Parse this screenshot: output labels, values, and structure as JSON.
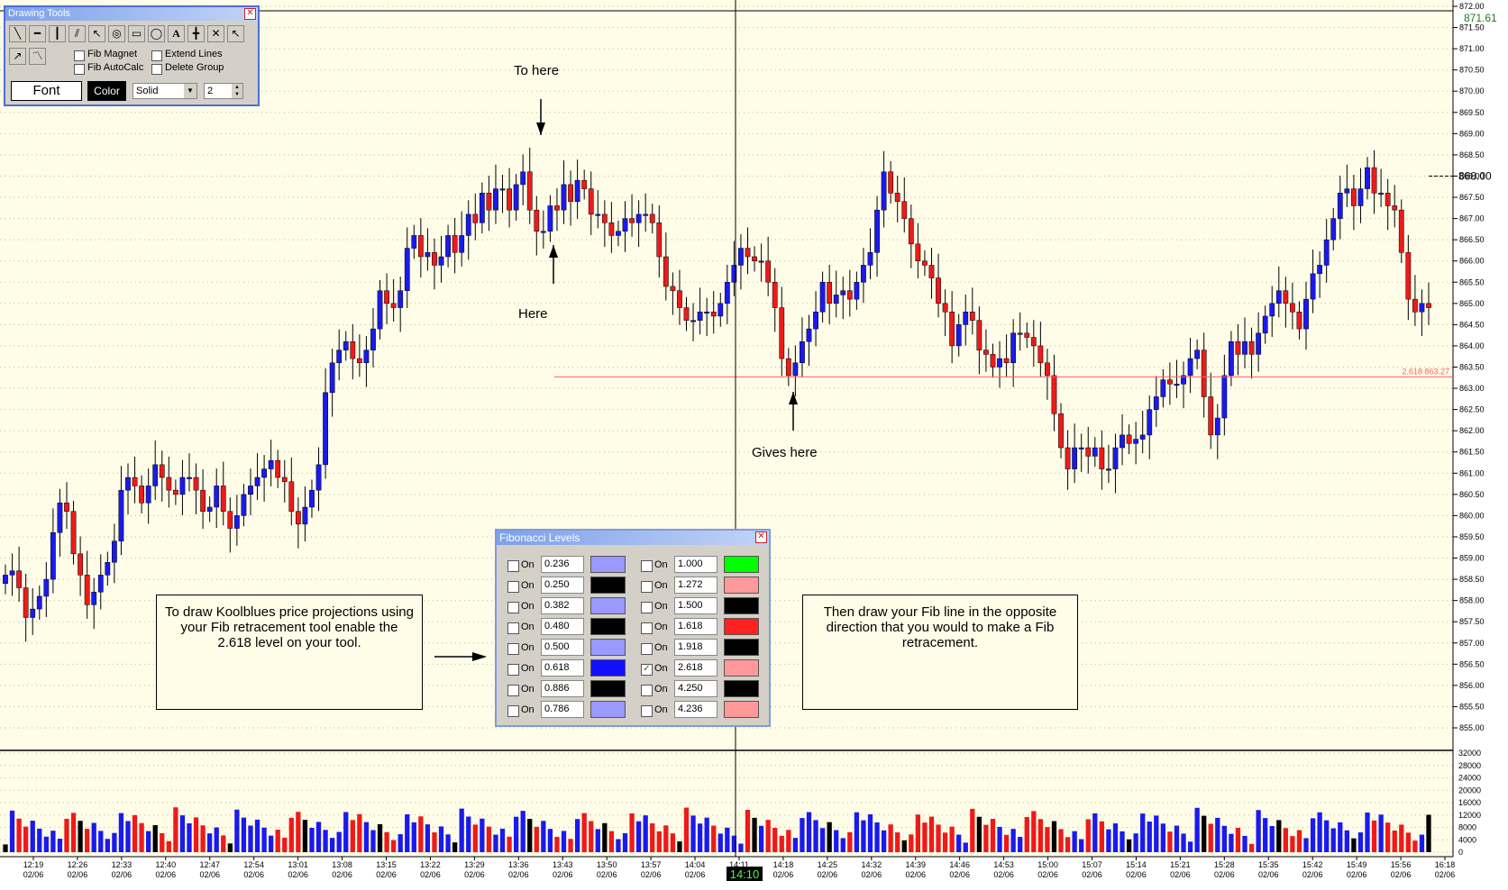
{
  "toolbar": {
    "title": "Drawing Tools",
    "fib_magnet": "Fib Magnet",
    "fib_autocalc": "Fib AutoCalc",
    "extend_lines": "Extend Lines",
    "delete_group": "Delete Group",
    "font_label": "Font",
    "color_label": "Color",
    "line_style": "Solid",
    "line_width": "2",
    "tools": [
      "line-tool",
      "horizontal-line-tool",
      "vertical-line-tool",
      "parallel-lines-tool",
      "arrow-tool",
      "fib-spiral-tool",
      "rectangle-tool",
      "ellipse-tool",
      "text-tool",
      "cross-line-tool",
      "delete-tool",
      "pointer-tool"
    ]
  },
  "annotations": {
    "to_here": "To here",
    "here": "Here",
    "gives_here": "Gives here",
    "left_note": "To draw Koolblues price projections using your Fib retracement tool enable the 2.618 level on your tool.",
    "right_note": "Then draw your Fib line in the opposite direction that you would to make a Fib retracement."
  },
  "fib_dialog": {
    "title": "Fibonacci Levels",
    "on_label": "On",
    "left": [
      {
        "value": "0.236",
        "on": false,
        "color": "#9999ff"
      },
      {
        "value": "0.250",
        "on": false,
        "color": "#000000"
      },
      {
        "value": "0.382",
        "on": false,
        "color": "#9999ff"
      },
      {
        "value": "0.480",
        "on": false,
        "color": "#000000"
      },
      {
        "value": "0.500",
        "on": false,
        "color": "#9999ff"
      },
      {
        "value": "0.618",
        "on": false,
        "color": "#1010ff"
      },
      {
        "value": "0.886",
        "on": false,
        "color": "#000000"
      },
      {
        "value": "0.786",
        "on": false,
        "color": "#9999ff"
      }
    ],
    "right": [
      {
        "value": "1.000",
        "on": false,
        "color": "#00ff00"
      },
      {
        "value": "1.272",
        "on": false,
        "color": "#ff9999"
      },
      {
        "value": "1.500",
        "on": false,
        "color": "#000000"
      },
      {
        "value": "1.618",
        "on": false,
        "color": "#ff2020"
      },
      {
        "value": "1.918",
        "on": false,
        "color": "#000000"
      },
      {
        "value": "2.618",
        "on": true,
        "color": "#ff9999"
      },
      {
        "value": "4.250",
        "on": false,
        "color": "#000000"
      },
      {
        "value": "4.236",
        "on": false,
        "color": "#ff9999"
      }
    ]
  },
  "chart_data": {
    "type": "candlestick",
    "price_axis": {
      "min": 855.0,
      "max": 872.0,
      "step": 0.5
    },
    "price_ticks": [
      "872.00",
      "871.50",
      "871.00",
      "870.50",
      "870.00",
      "869.50",
      "869.00",
      "868.50",
      "868.00",
      "867.50",
      "867.00",
      "866.50",
      "866.00",
      "865.50",
      "865.00",
      "864.50",
      "864.00",
      "863.50",
      "863.00",
      "862.50",
      "862.00",
      "861.50",
      "861.00",
      "860.50",
      "860.00",
      "859.50",
      "859.00",
      "858.50",
      "858.00",
      "857.50",
      "857.00",
      "856.50",
      "856.00",
      "855.50",
      "855.00"
    ],
    "last_price_label": "871.61",
    "current_price_label": "868.00",
    "current_price": 868.0,
    "fib_level": {
      "label": "2.618 863.27",
      "price": 863.27,
      "color": "#ff6060"
    },
    "volume_ticks": [
      "32000",
      "28000",
      "24000",
      "20000",
      "16000",
      "12000",
      "8000",
      "4000",
      "0"
    ],
    "volume_max": 32000,
    "time_ticks": [
      "12:19",
      "12:26",
      "12:33",
      "12:40",
      "12:47",
      "12:54",
      "13:01",
      "13:08",
      "13:15",
      "13:22",
      "13:29",
      "13:36",
      "13:43",
      "13:50",
      "13:57",
      "14:04",
      "14:11",
      "14:18",
      "14:25",
      "14:32",
      "14:39",
      "14:46",
      "14:53",
      "15:00",
      "15:07",
      "15:14",
      "15:21",
      "15:28",
      "15:35",
      "15:42",
      "15:49",
      "15:56",
      "16:18"
    ],
    "date_label": "02/06",
    "cursor_time": "14:10",
    "closes": [
      858.6,
      858.7,
      858.3,
      857.6,
      857.8,
      858.1,
      858.5,
      859.6,
      860.3,
      860.1,
      859.1,
      858.6,
      857.9,
      858.2,
      858.6,
      858.9,
      859.4,
      860.6,
      860.9,
      860.7,
      860.3,
      860.7,
      861.2,
      860.9,
      860.6,
      860.5,
      860.9,
      860.9,
      860.6,
      860.1,
      860.2,
      860.7,
      860.1,
      859.7,
      860.0,
      860.5,
      860.7,
      860.9,
      861.1,
      861.3,
      860.9,
      860.8,
      860.1,
      859.8,
      860.2,
      860.6,
      861.2,
      862.9,
      863.6,
      863.9,
      864.1,
      863.7,
      863.6,
      863.9,
      864.4,
      865.3,
      865.0,
      864.9,
      865.3,
      866.3,
      866.6,
      866.1,
      866.2,
      865.9,
      866.1,
      866.6,
      866.2,
      866.6,
      867.1,
      866.9,
      867.6,
      867.2,
      867.7,
      867.7,
      867.2,
      867.8,
      868.1,
      867.2,
      866.7,
      866.7,
      867.3,
      867.2,
      867.8,
      867.4,
      867.9,
      867.7,
      867.1,
      867.1,
      866.9,
      866.6,
      866.7,
      867.0,
      866.9,
      867.1,
      867.1,
      866.9,
      866.1,
      865.4,
      865.3,
      864.9,
      864.6,
      864.6,
      864.8,
      864.8,
      864.7,
      865.0,
      865.5,
      865.9,
      866.3,
      866.1,
      866.0,
      866.0,
      865.5,
      864.9,
      863.7,
      863.3,
      863.6,
      864.1,
      864.4,
      864.8,
      865.5,
      865.0,
      865.2,
      865.3,
      865.1,
      865.5,
      865.9,
      866.2,
      867.2,
      868.1,
      867.6,
      867.4,
      867.0,
      866.4,
      866.0,
      865.9,
      865.6,
      865.0,
      864.8,
      864.0,
      864.5,
      864.8,
      864.6,
      863.9,
      863.8,
      863.5,
      863.7,
      863.6,
      864.3,
      864.3,
      864.2,
      864.0,
      863.6,
      863.3,
      862.4,
      861.6,
      861.1,
      861.6,
      861.6,
      861.4,
      861.6,
      861.1,
      861.1,
      861.6,
      861.9,
      861.7,
      861.8,
      861.9,
      862.5,
      862.8,
      863.2,
      863.1,
      863.1,
      863.3,
      863.7,
      863.9,
      862.8,
      861.9,
      862.3,
      863.3,
      864.1,
      863.8,
      864.1,
      863.8,
      864.3,
      864.7,
      865.0,
      865.3,
      865.0,
      864.8,
      864.4,
      865.1,
      865.7,
      865.9,
      866.5,
      867.0,
      867.6,
      867.7,
      867.3,
      867.7,
      868.2,
      867.6,
      867.6,
      867.3,
      867.2,
      866.2,
      865.1,
      864.8,
      865.0,
      864.9
    ]
  }
}
